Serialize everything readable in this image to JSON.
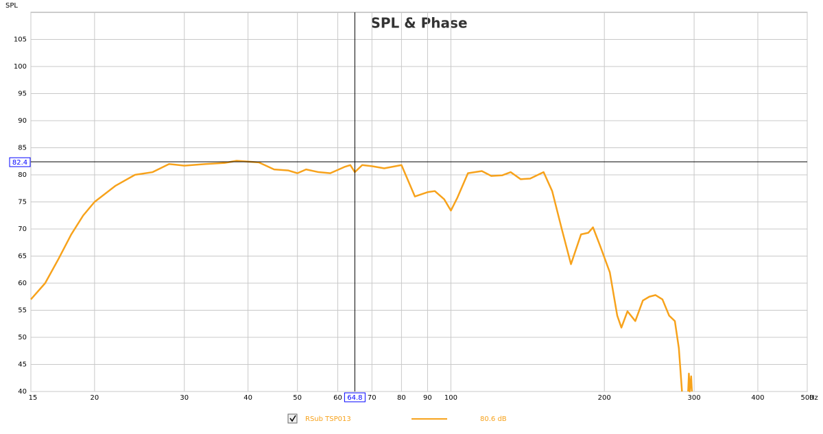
{
  "chart_data": {
    "type": "line",
    "title": "SPL & Phase",
    "y_label": "SPL",
    "x_unit": "Hz",
    "log_x": true,
    "grid": true,
    "xlim": [
      15,
      500
    ],
    "xticks": [
      15,
      20,
      30,
      40,
      50,
      60,
      70,
      80,
      90,
      100,
      200,
      300,
      400,
      500
    ],
    "ylim": [
      40,
      110
    ],
    "yticks": [
      40,
      45,
      50,
      55,
      60,
      65,
      70,
      75,
      80,
      85,
      90,
      95,
      100,
      105
    ],
    "cursor": {
      "x": 64.8,
      "y": 82.4
    },
    "series": [
      {
        "name": "RSub TSP013",
        "color": "#f7a21b",
        "legend_value": "80.6 dB",
        "x": [
          15,
          16,
          17,
          18,
          19,
          20,
          22,
          24,
          26,
          28,
          30,
          33,
          36,
          38,
          42,
          45,
          48,
          50,
          52,
          55,
          58,
          62,
          63.5,
          64.8,
          67,
          70,
          74,
          80,
          85,
          90,
          93,
          97,
          100,
          103,
          108,
          115,
          120,
          126,
          131,
          137,
          143,
          152,
          158,
          165,
          172,
          180,
          186,
          190,
          196,
          205,
          212,
          216,
          222,
          230,
          238,
          245,
          252,
          260,
          268,
          275,
          280,
          284,
          288,
          292,
          293,
          294,
          296,
          297
        ],
        "values": [
          57,
          60,
          64.5,
          69,
          72.5,
          75,
          78,
          80,
          80.5,
          82,
          81.7,
          82,
          82.2,
          82.6,
          82.3,
          81,
          80.8,
          80.3,
          81,
          80.5,
          80.3,
          81.5,
          81.8,
          80.5,
          81.8,
          81.6,
          81.2,
          81.8,
          76,
          76.8,
          77,
          75.5,
          73.4,
          75.8,
          80.3,
          80.7,
          79.8,
          79.9,
          80.5,
          79.2,
          79.3,
          80.5,
          77,
          70,
          63.5,
          69,
          69.3,
          70.3,
          67,
          62,
          54,
          51.8,
          54.8,
          53,
          56.8,
          57.5,
          57.8,
          57,
          54,
          53,
          48,
          40,
          null,
          40,
          43.3,
          40,
          42.8,
          40
        ]
      }
    ]
  }
}
